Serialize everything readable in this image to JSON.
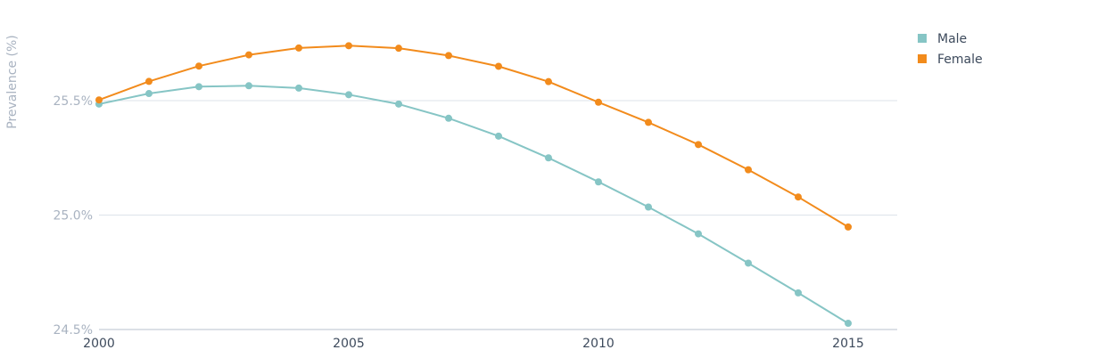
{
  "chart_data": {
    "type": "line",
    "ylabel": "Prevalence (%)",
    "xlabel": "",
    "x": [
      2000,
      2001,
      2002,
      2003,
      2004,
      2005,
      2006,
      2007,
      2008,
      2009,
      2010,
      2011,
      2012,
      2013,
      2014,
      2015
    ],
    "xticks": [
      "2000",
      "2005",
      "2010",
      "2015"
    ],
    "yticks": [
      "24.5%",
      "25.0%",
      "25.5%"
    ],
    "ylim": [
      24.5,
      25.96
    ],
    "grid": "horizontal",
    "legend_position": "top-right",
    "series": [
      {
        "name": "Male",
        "color": "#86c5c5",
        "values": [
          25.485,
          25.531,
          25.561,
          25.565,
          25.555,
          25.526,
          25.485,
          25.423,
          25.345,
          25.25,
          25.145,
          25.035,
          24.918,
          24.79,
          24.66,
          24.527
        ]
      },
      {
        "name": "Female",
        "color": "#f28b1c",
        "values": [
          25.503,
          25.584,
          25.651,
          25.7,
          25.73,
          25.74,
          25.729,
          25.697,
          25.65,
          25.583,
          25.493,
          25.405,
          25.308,
          25.198,
          25.079,
          24.948
        ]
      }
    ]
  }
}
